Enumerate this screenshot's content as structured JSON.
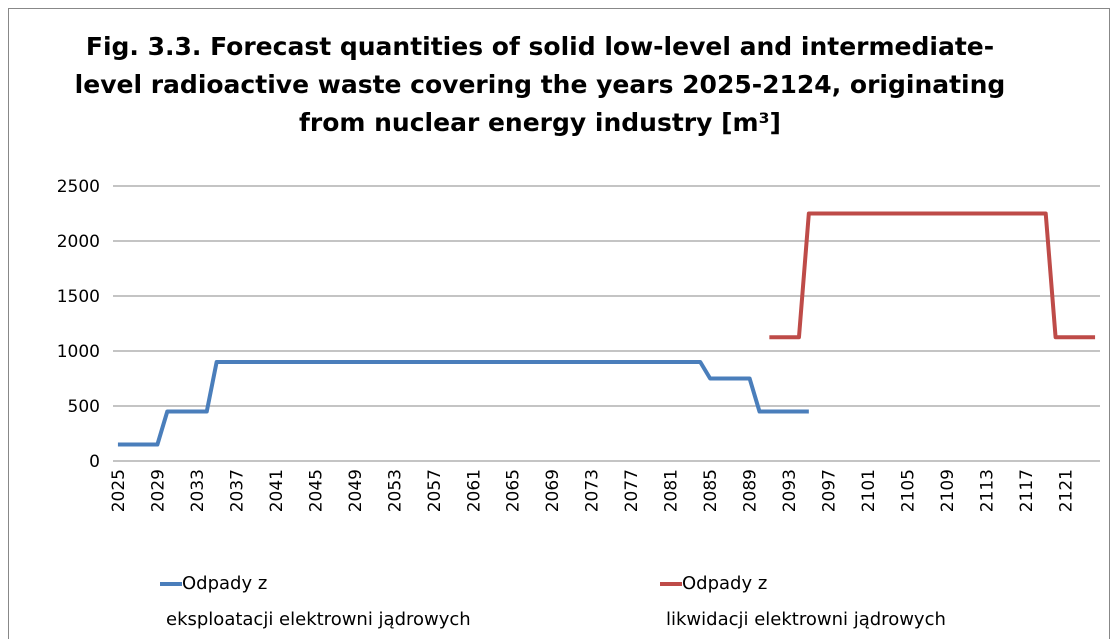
{
  "chart_data": {
    "type": "line",
    "title": "Fig. 3.3. Forecast quantities of solid low-level and intermediate-\nlevel radioactive waste covering the years 2025-2124, originating\nfrom nuclear energy industry [m³]",
    "categories": [
      "2025",
      null,
      null,
      null,
      "2029",
      null,
      null,
      null,
      "2033",
      null,
      null,
      null,
      "2037",
      null,
      null,
      null,
      "2041",
      null,
      null,
      null,
      "2045",
      null,
      null,
      null,
      "2049",
      null,
      null,
      null,
      "2053",
      null,
      null,
      null,
      "2057",
      null,
      null,
      null,
      "2061",
      null,
      null,
      null,
      "2065",
      null,
      null,
      null,
      "2069",
      null,
      null,
      null,
      "2073",
      null,
      null,
      null,
      "2077",
      null,
      null,
      null,
      "2081",
      null,
      null,
      null,
      "2085",
      null,
      null,
      null,
      "2089",
      null,
      null,
      null,
      "2093",
      null,
      null,
      null,
      "2097",
      null,
      null,
      null,
      "2101",
      null,
      null,
      null,
      "2105",
      null,
      null,
      null,
      "2109",
      null,
      null,
      null,
      "2113",
      null,
      null,
      null,
      "2117",
      null,
      null,
      null,
      "2121",
      null,
      null,
      null
    ],
    "series": [
      {
        "name": "Odpady z\neksploatacji elektrowni jądrowych",
        "color": "#4a7ebb",
        "values": [
          150,
          150,
          150,
          150,
          150,
          450,
          450,
          450,
          450,
          450,
          900,
          900,
          900,
          900,
          900,
          900,
          900,
          900,
          900,
          900,
          900,
          900,
          900,
          900,
          900,
          900,
          900,
          900,
          900,
          900,
          900,
          900,
          900,
          900,
          900,
          900,
          900,
          900,
          900,
          900,
          900,
          900,
          900,
          900,
          900,
          900,
          900,
          900,
          900,
          900,
          900,
          900,
          900,
          900,
          900,
          900,
          900,
          900,
          900,
          900,
          750,
          750,
          750,
          750,
          750,
          450,
          450,
          450,
          450,
          450,
          450,
          null,
          null,
          null,
          null,
          null,
          null,
          null,
          null,
          null,
          null,
          null,
          null,
          null,
          null,
          null,
          null,
          null,
          null,
          null,
          null,
          null,
          null,
          null,
          null,
          null,
          null,
          null,
          null,
          null
        ]
      },
      {
        "name": "Odpady z\nlikwidacji elektrowni jądrowych",
        "color": "#be4b48",
        "values": [
          null,
          null,
          null,
          null,
          null,
          null,
          null,
          null,
          null,
          null,
          null,
          null,
          null,
          null,
          null,
          null,
          null,
          null,
          null,
          null,
          null,
          null,
          null,
          null,
          null,
          null,
          null,
          null,
          null,
          null,
          null,
          null,
          null,
          null,
          null,
          null,
          null,
          null,
          null,
          null,
          null,
          null,
          null,
          null,
          null,
          null,
          null,
          null,
          null,
          null,
          null,
          null,
          null,
          null,
          null,
          null,
          null,
          null,
          null,
          null,
          null,
          null,
          null,
          null,
          null,
          null,
          1125,
          1125,
          1125,
          1125,
          2250,
          2250,
          2250,
          2250,
          2250,
          2250,
          2250,
          2250,
          2250,
          2250,
          2250,
          2250,
          2250,
          2250,
          2250,
          2250,
          2250,
          2250,
          2250,
          2250,
          2250,
          2250,
          2250,
          2250,
          2250,
          1125,
          1125,
          1125,
          1125,
          1125
        ]
      }
    ],
    "ylim": [
      0,
      2500
    ],
    "yticks": [
      0,
      500,
      1000,
      1500,
      2000,
      2500
    ],
    "grid": true
  }
}
